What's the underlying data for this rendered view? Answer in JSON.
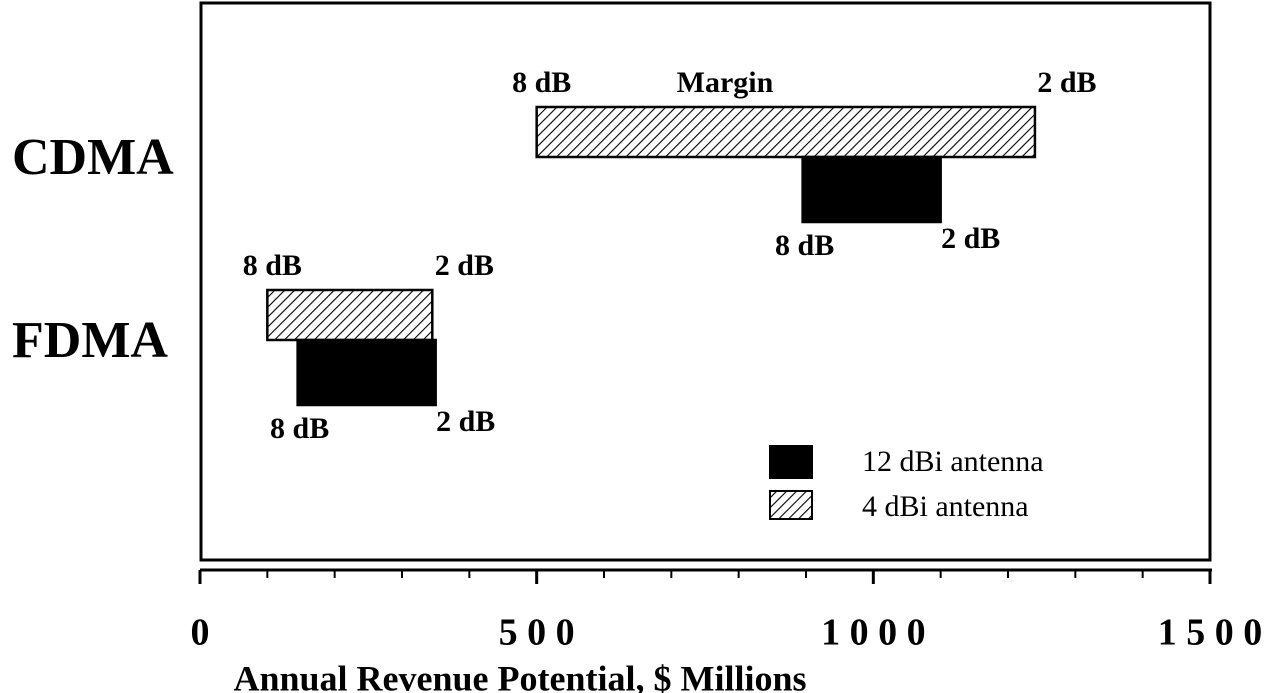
{
  "chart_data": {
    "type": "range-bar",
    "categories": [
      "CDMA",
      "FDMA"
    ],
    "series": [
      {
        "name": "12 dBi antenna",
        "color": "#000000",
        "fill": "solid",
        "values": [
          [
            895,
            1100
          ],
          [
            145,
            350
          ]
        ],
        "low_labels": [
          "8 dB",
          "8 dB"
        ],
        "high_labels": [
          "2 dB",
          "2 dB"
        ]
      },
      {
        "name": "4 dBi antenna",
        "color": "#000000",
        "fill": "hatch",
        "values": [
          [
            500,
            1240
          ],
          [
            100,
            345
          ]
        ],
        "low_labels": [
          "8 dB",
          "8 dB"
        ],
        "high_labels": [
          "2 dB",
          "2 dB"
        ]
      }
    ],
    "annotation": "Margin",
    "x_label": "Annual Revenue Potential, $ Millions",
    "xlim": [
      0,
      1500
    ],
    "xticks": [
      0,
      {
        "value": 500,
        "label": "5 0 0"
      },
      {
        "value": 1000,
        "label": "1 0 0 0"
      },
      {
        "value": 1500,
        "label": "1 5 0 0"
      }
    ],
    "xminorticks": [
      100,
      200,
      300,
      400,
      600,
      700,
      800,
      900,
      1100,
      1200,
      1300,
      1400
    ],
    "legend": "lower right"
  }
}
